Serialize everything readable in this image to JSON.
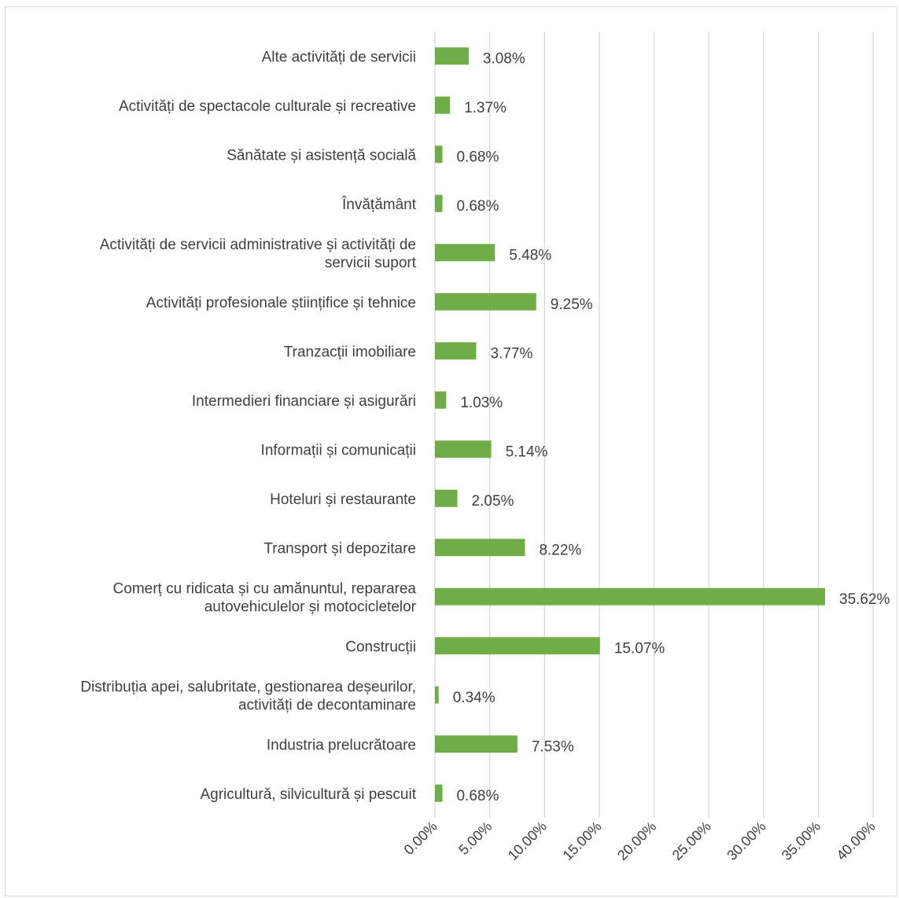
{
  "chart_data": {
    "type": "bar",
    "orientation": "horizontal",
    "categories": [
      "Alte activități de servicii",
      "Activități de spectacole culturale și recreative",
      "Sănătate și asistență socială",
      "Învățământ",
      "Activități de servicii administrative și activități de servicii suport",
      "Activități profesionale științifice și tehnice",
      "Tranzacții imobiliare",
      "Intermedieri financiare și asigurări",
      "Informații și comunicații",
      "Hoteluri și restaurante",
      "Transport și depozitare",
      "Comerț cu ridicata și cu amănuntul, repararea autovehiculelor și motocicletelor",
      "Construcții",
      "Distribuția apei, salubritate, gestionarea deșeurilor, activități de decontaminare",
      "Industria prelucrătoare",
      "Agricultură, silvicultură și pescuit"
    ],
    "category_lines": [
      [
        "Alte activități de servicii"
      ],
      [
        "Activități de spectacole culturale și recreative"
      ],
      [
        "Sănătate și asistență socială"
      ],
      [
        "Învățământ"
      ],
      [
        "Activități de servicii administrative și activități de",
        "servicii suport"
      ],
      [
        "Activități profesionale științifice și tehnice"
      ],
      [
        "Tranzacții imobiliare"
      ],
      [
        "Intermedieri financiare și asigurări"
      ],
      [
        "Informații și comunicații"
      ],
      [
        "Hoteluri și restaurante"
      ],
      [
        "Transport și depozitare"
      ],
      [
        "Comerț cu ridicata și cu amănuntul, repararea",
        "autovehiculelor și motocicletelor"
      ],
      [
        "Construcții"
      ],
      [
        "Distribuția apei, salubritate, gestionarea deșeurilor,",
        "activități de decontaminare"
      ],
      [
        "Industria prelucrătoare"
      ],
      [
        "Agricultură, silvicultură și pescuit"
      ]
    ],
    "values": [
      3.08,
      1.37,
      0.68,
      0.68,
      5.48,
      9.25,
      3.77,
      1.03,
      5.14,
      2.05,
      8.22,
      35.62,
      15.07,
      0.34,
      7.53,
      0.68
    ],
    "value_labels": [
      "3.08%",
      "1.37%",
      "0.68%",
      "0.68%",
      "5.48%",
      "9.25%",
      "3.77%",
      "1.03%",
      "5.14%",
      "2.05%",
      "8.22%",
      "35.62%",
      "15.07%",
      "0.34%",
      "7.53%",
      "0.68%"
    ],
    "xlim": [
      0,
      40
    ],
    "xticks": [
      0,
      5,
      10,
      15,
      20,
      25,
      30,
      35,
      40
    ],
    "xtick_labels": [
      "0.00%",
      "5.00%",
      "10.00%",
      "15.00%",
      "20.00%",
      "25.00%",
      "30.00%",
      "35.00%",
      "40.00%"
    ],
    "bar_color": "#70ad47",
    "grid": "vertical",
    "legend": "none",
    "title": "",
    "xlabel": "",
    "ylabel": ""
  }
}
